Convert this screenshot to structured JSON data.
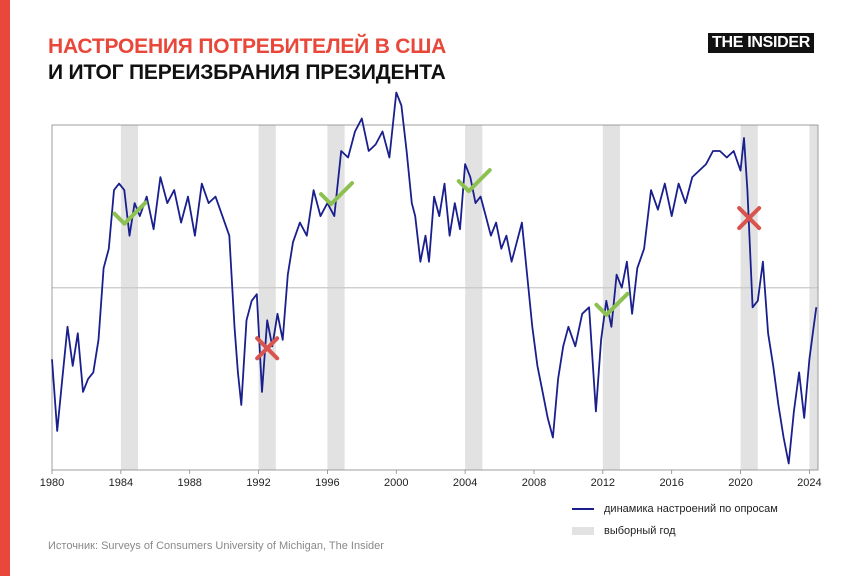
{
  "header": {
    "title_line1": "НАСТРОЕНИЯ ПОТРЕБИТЕЛЕЙ В США",
    "title_line2": "И ИТОГ ПЕРЕИЗБРАНИЯ ПРЕЗИДЕНТА",
    "logo_text": "THE INSIDER"
  },
  "colors": {
    "accent": "#e9473a",
    "line": "#1a1f8e",
    "band": "#e2e2e2",
    "check": "#8cc152",
    "cross": "#d9534f",
    "reference": "#c8c8c8"
  },
  "legend": {
    "line_label": "динамика настроений по опросам",
    "band_label": "выборный год"
  },
  "source": "Источник: Surveys of Consumers University of  Michigan, The Insider",
  "chart_data": {
    "type": "line",
    "xlim": [
      1980,
      2024.5
    ],
    "ylim": [
      50,
      103
    ],
    "x_ticks": [
      1980,
      1984,
      1988,
      1992,
      1996,
      2000,
      2004,
      2008,
      2012,
      2016,
      2020,
      2024
    ],
    "reference_value": 78,
    "election_years": [
      1984,
      1992,
      1996,
      2004,
      2012,
      2020,
      2024
    ],
    "outcomes": [
      {
        "year": 1984,
        "result": "reelected"
      },
      {
        "year": 1992,
        "result": "not_reelected"
      },
      {
        "year": 1996,
        "result": "reelected"
      },
      {
        "year": 2004,
        "result": "reelected"
      },
      {
        "year": 2012,
        "result": "reelected"
      },
      {
        "year": 2020,
        "result": "not_reelected"
      }
    ],
    "series": [
      {
        "x": [
          1980.0,
          1980.3,
          1980.6,
          1980.9,
          1981.2,
          1981.5,
          1981.8,
          1982.1,
          1982.4,
          1982.7,
          1983.0,
          1983.3,
          1983.6,
          1983.9,
          1984.2,
          1984.5,
          1984.8,
          1985.1,
          1985.5,
          1985.9,
          1986.3,
          1986.7,
          1987.1,
          1987.5,
          1987.9,
          1988.3,
          1988.7,
          1989.1,
          1989.5,
          1989.9,
          1990.3,
          1990.6,
          1990.8,
          1991.0,
          1991.3,
          1991.6,
          1991.9,
          1992.2,
          1992.5,
          1992.8,
          1993.1,
          1993.4,
          1993.7,
          1994.0,
          1994.4,
          1994.8,
          1995.2,
          1995.6,
          1996.0,
          1996.4,
          1996.8,
          1997.2,
          1997.6,
          1998.0,
          1998.4,
          1998.8,
          1999.2,
          1999.6,
          2000.0,
          2000.3,
          2000.6,
          2000.9,
          2001.1,
          2001.4,
          2001.7,
          2001.9,
          2002.2,
          2002.5,
          2002.8,
          2003.1,
          2003.4,
          2003.7,
          2004.0,
          2004.3,
          2004.6,
          2004.9,
          2005.2,
          2005.5,
          2005.8,
          2006.1,
          2006.4,
          2006.7,
          2007.0,
          2007.3,
          2007.6,
          2007.9,
          2008.2,
          2008.5,
          2008.8,
          2009.1,
          2009.4,
          2009.7,
          2010.0,
          2010.4,
          2010.8,
          2011.2,
          2011.6,
          2011.9,
          2012.2,
          2012.5,
          2012.8,
          2013.1,
          2013.4,
          2013.7,
          2014.0,
          2014.4,
          2014.8,
          2015.2,
          2015.6,
          2016.0,
          2016.4,
          2016.8,
          2017.2,
          2017.6,
          2018.0,
          2018.4,
          2018.8,
          2019.2,
          2019.6,
          2020.0,
          2020.2,
          2020.4,
          2020.7,
          2021.0,
          2021.3,
          2021.6,
          2021.9,
          2022.2,
          2022.5,
          2022.8,
          2023.1,
          2023.4,
          2023.7,
          2024.0,
          2024.2,
          2024.4
        ],
        "values": [
          67,
          56,
          64,
          72,
          66,
          71,
          62,
          64,
          65,
          70,
          81,
          84,
          93,
          94,
          93,
          86,
          91,
          89,
          92,
          87,
          95,
          91,
          93,
          88,
          92,
          86,
          94,
          91,
          92,
          89,
          86,
          72,
          65,
          60,
          73,
          76,
          77,
          62,
          73,
          69,
          74,
          70,
          80,
          85,
          88,
          86,
          93,
          89,
          91,
          89,
          99,
          98,
          102,
          104,
          99,
          100,
          102,
          98,
          108,
          106,
          99,
          91,
          89,
          82,
          86,
          82,
          92,
          89,
          94,
          86,
          91,
          87,
          97,
          95,
          91,
          92,
          89,
          86,
          88,
          84,
          86,
          82,
          85,
          88,
          80,
          72,
          66,
          62,
          58,
          55,
          64,
          69,
          72,
          69,
          74,
          75,
          59,
          70,
          76,
          72,
          80,
          78,
          82,
          74,
          81,
          84,
          93,
          90,
          94,
          89,
          94,
          91,
          95,
          96,
          97,
          99,
          99,
          98,
          99,
          96,
          101,
          93,
          75,
          76,
          82,
          71,
          66,
          60,
          55,
          51,
          59,
          65,
          58,
          67,
          71,
          75
        ]
      }
    ]
  }
}
